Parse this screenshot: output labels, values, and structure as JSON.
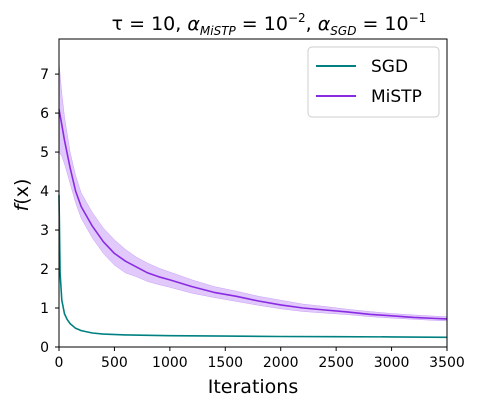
{
  "chart_data": {
    "type": "line",
    "title_parts": {
      "tau_eq": "τ = 10, ",
      "alpha": "α",
      "sub_mistp": "MiSTP",
      "eq_pow_mistp": " = 10",
      "exp_mistp": "−2",
      "comma": ", ",
      "sub_sgd": "SGD",
      "eq_pow_sgd": " = 10",
      "exp_sgd": "−1"
    },
    "xlabel": "Iterations",
    "ylabel_parts": {
      "f": "f",
      "x_paren": "(x)"
    },
    "xlim": [
      0,
      3500
    ],
    "ylim": [
      0,
      7.9
    ],
    "xticks": [
      0,
      500,
      1000,
      1500,
      2000,
      2500,
      3000,
      3500
    ],
    "yticks": [
      0,
      1,
      2,
      3,
      4,
      5,
      6,
      7
    ],
    "grid": false,
    "legend_position": "top-right",
    "series": [
      {
        "name": "SGD",
        "color": "#008080",
        "x": [
          0,
          10,
          25,
          50,
          75,
          100,
          150,
          200,
          300,
          400,
          600,
          800,
          1000,
          1500,
          2000,
          2500,
          3000,
          3500
        ],
        "y": [
          3.9,
          1.9,
          1.2,
          0.85,
          0.7,
          0.6,
          0.48,
          0.42,
          0.36,
          0.33,
          0.31,
          0.3,
          0.29,
          0.28,
          0.27,
          0.265,
          0.26,
          0.25
        ]
      },
      {
        "name": "MiSTP",
        "color": "#8a2be2",
        "band_color": "#c89ef7",
        "x": [
          0,
          25,
          50,
          100,
          150,
          200,
          300,
          400,
          500,
          600,
          700,
          800,
          900,
          1000,
          1200,
          1400,
          1600,
          1800,
          2000,
          2200,
          2400,
          2600,
          2800,
          3000,
          3200,
          3400,
          3500
        ],
        "y": [
          6.1,
          5.7,
          5.3,
          4.6,
          4.0,
          3.6,
          3.1,
          2.7,
          2.4,
          2.2,
          2.05,
          1.9,
          1.8,
          1.72,
          1.55,
          1.4,
          1.3,
          1.18,
          1.08,
          1.0,
          0.95,
          0.9,
          0.84,
          0.8,
          0.76,
          0.73,
          0.72
        ],
        "upper": [
          7.3,
          6.5,
          5.9,
          5.0,
          4.4,
          3.95,
          3.45,
          3.05,
          2.75,
          2.5,
          2.3,
          2.15,
          2.02,
          1.92,
          1.72,
          1.55,
          1.43,
          1.3,
          1.2,
          1.1,
          1.04,
          0.97,
          0.91,
          0.86,
          0.82,
          0.79,
          0.78
        ],
        "lower": [
          5.0,
          4.9,
          4.7,
          4.2,
          3.7,
          3.3,
          2.8,
          2.4,
          2.1,
          1.9,
          1.8,
          1.68,
          1.6,
          1.53,
          1.38,
          1.27,
          1.17,
          1.07,
          0.98,
          0.91,
          0.87,
          0.83,
          0.78,
          0.74,
          0.71,
          0.68,
          0.67
        ]
      }
    ]
  }
}
